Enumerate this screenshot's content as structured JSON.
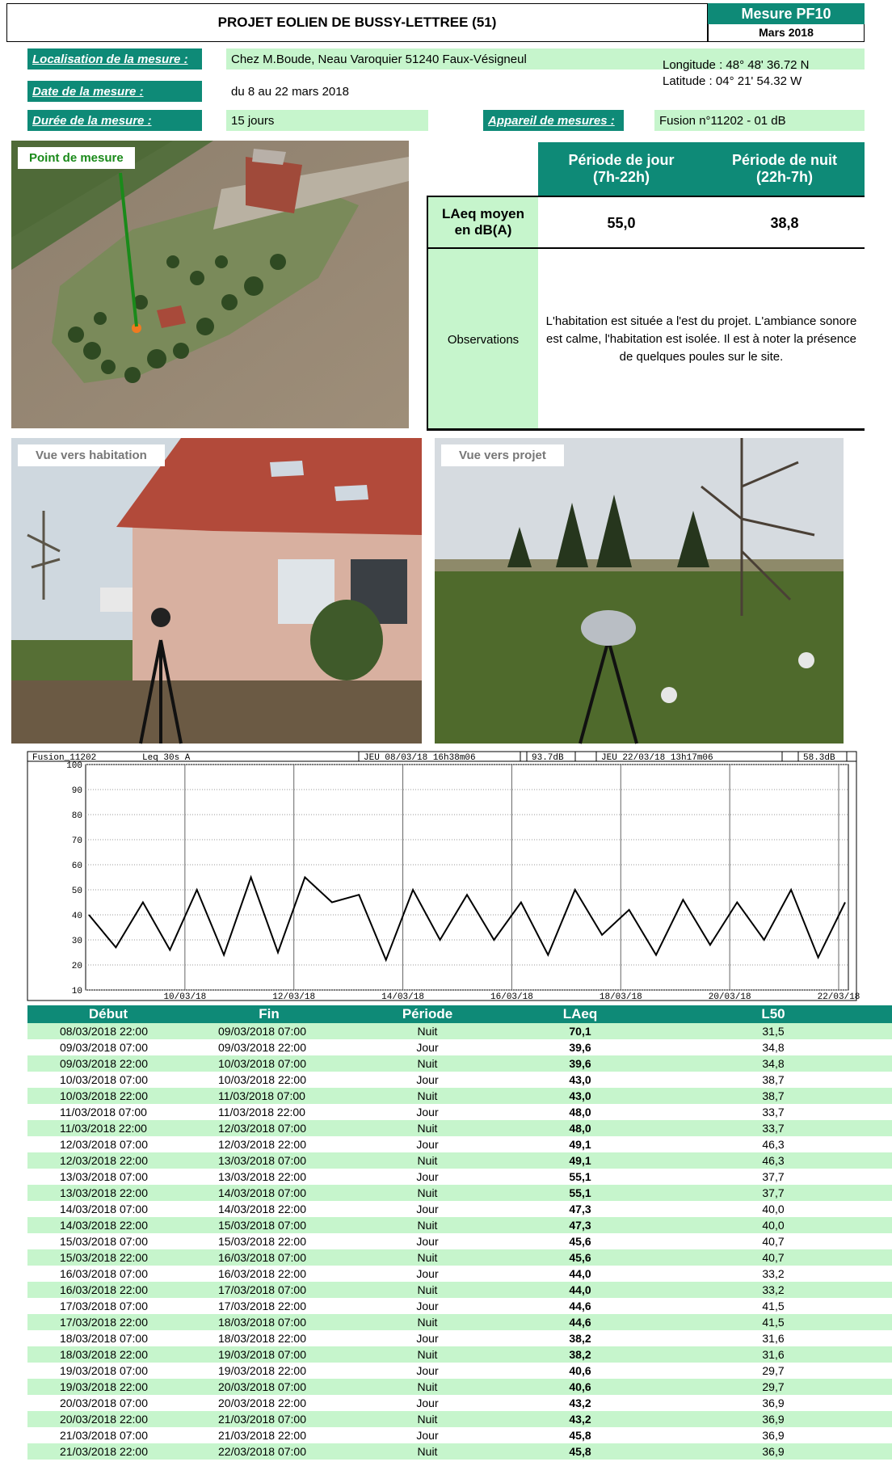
{
  "header": {
    "title": "PROJET EOLIEN DE BUSSY-LETTREE (51)",
    "badge_title": "Mesure PF10",
    "badge_date": "Mars 2018"
  },
  "info": {
    "localisation_label": "Localisation de la mesure :",
    "localisation_value": "Chez M.Boude, Neau Varoquier 51240 Faux-Vésigneul",
    "longitude": "Longitude : 48° 48' 36.72 N",
    "latitude": "Latitude : 04° 21' 54.32 W",
    "date_label": "Date de la mesure :",
    "date_value": "du 8 au 22 mars 2018",
    "duree_label": "Durée de la mesure :",
    "duree_value": "15 jours",
    "appareil_label": "Appareil de mesures :",
    "appareil_value": "Fusion n°11202 - 01 dB"
  },
  "map": {
    "label": "Point de mesure"
  },
  "summary": {
    "col_day": "Période de jour\n(7h-22h)",
    "col_night": "Période de nuit\n(22h-7h)",
    "row_label": "LAeq moyen\nen dB(A)",
    "day_value": "55,0",
    "night_value": "38,8",
    "obs_label": "Observations",
    "obs_text": "L'habitation est située a l'est du projet. L'ambiance sonore est calme, l'habitation est isolée. Il est à noter la présence de quelques poules sur le site."
  },
  "photos": {
    "left_label": "Vue vers habitation",
    "right_label": "Vue vers projet"
  },
  "chart_header": {
    "device": "Fusion_11202",
    "metric": "Leq 30s  A",
    "start": "JEU 08/03/18 16h38m06",
    "start_val": "93.7dB",
    "end": "JEU 22/03/18 13h17m06",
    "end_val": "58.3dB"
  },
  "chart_data": {
    "type": "line",
    "xlabel": "",
    "ylabel": "",
    "ylim": [
      10,
      100
    ],
    "yticks": [
      "100",
      "90",
      "80",
      "70",
      "60",
      "50",
      "40",
      "30",
      "20",
      "10"
    ],
    "xticks": [
      "10/03/18",
      "12/03/18",
      "14/03/18",
      "16/03/18",
      "18/03/18",
      "20/03/18",
      "22/03/18"
    ],
    "grid": true,
    "series": [
      {
        "x": [
          "08/03 16h",
          "09/03 00h",
          "09/03 12h",
          "10/03 00h",
          "10/03 12h",
          "11/03 00h",
          "11/03 12h",
          "12/03 00h",
          "12/03 12h",
          "13/03 00h",
          "13/03 12h",
          "14/03 00h",
          "14/03 12h",
          "15/03 00h",
          "15/03 12h",
          "16/03 00h",
          "16/03 12h",
          "17/03 00h",
          "17/03 12h",
          "18/03 00h",
          "18/03 12h",
          "19/03 00h",
          "19/03 12h",
          "20/03 00h",
          "20/03 12h",
          "21/03 00h",
          "21/03 12h",
          "22/03 00h",
          "22/03 13h"
        ],
        "values": [
          40,
          27,
          45,
          26,
          50,
          24,
          55,
          25,
          55,
          45,
          48,
          22,
          50,
          30,
          48,
          30,
          45,
          24,
          50,
          32,
          42,
          24,
          46,
          28,
          45,
          30,
          50,
          23,
          45
        ]
      }
    ]
  },
  "table": {
    "headers": [
      "Début",
      "Fin",
      "Période",
      "LAeq",
      "L50"
    ],
    "rows": [
      [
        "08/03/2018 22:00",
        "09/03/2018 07:00",
        "Nuit",
        "70,1",
        "31,5"
      ],
      [
        "09/03/2018 07:00",
        "09/03/2018 22:00",
        "Jour",
        "39,6",
        "34,8"
      ],
      [
        "09/03/2018 22:00",
        "10/03/2018 07:00",
        "Nuit",
        "39,6",
        "34,8"
      ],
      [
        "10/03/2018 07:00",
        "10/03/2018 22:00",
        "Jour",
        "43,0",
        "38,7"
      ],
      [
        "10/03/2018 22:00",
        "11/03/2018 07:00",
        "Nuit",
        "43,0",
        "38,7"
      ],
      [
        "11/03/2018 07:00",
        "11/03/2018 22:00",
        "Jour",
        "48,0",
        "33,7"
      ],
      [
        "11/03/2018 22:00",
        "12/03/2018 07:00",
        "Nuit",
        "48,0",
        "33,7"
      ],
      [
        "12/03/2018 07:00",
        "12/03/2018 22:00",
        "Jour",
        "49,1",
        "46,3"
      ],
      [
        "12/03/2018 22:00",
        "13/03/2018 07:00",
        "Nuit",
        "49,1",
        "46,3"
      ],
      [
        "13/03/2018 07:00",
        "13/03/2018 22:00",
        "Jour",
        "55,1",
        "37,7"
      ],
      [
        "13/03/2018 22:00",
        "14/03/2018 07:00",
        "Nuit",
        "55,1",
        "37,7"
      ],
      [
        "14/03/2018 07:00",
        "14/03/2018 22:00",
        "Jour",
        "47,3",
        "40,0"
      ],
      [
        "14/03/2018 22:00",
        "15/03/2018 07:00",
        "Nuit",
        "47,3",
        "40,0"
      ],
      [
        "15/03/2018 07:00",
        "15/03/2018 22:00",
        "Jour",
        "45,6",
        "40,7"
      ],
      [
        "15/03/2018 22:00",
        "16/03/2018 07:00",
        "Nuit",
        "45,6",
        "40,7"
      ],
      [
        "16/03/2018 07:00",
        "16/03/2018 22:00",
        "Jour",
        "44,0",
        "33,2"
      ],
      [
        "16/03/2018 22:00",
        "17/03/2018 07:00",
        "Nuit",
        "44,0",
        "33,2"
      ],
      [
        "17/03/2018 07:00",
        "17/03/2018 22:00",
        "Jour",
        "44,6",
        "41,5"
      ],
      [
        "17/03/2018 22:00",
        "18/03/2018 07:00",
        "Nuit",
        "44,6",
        "41,5"
      ],
      [
        "18/03/2018 07:00",
        "18/03/2018 22:00",
        "Jour",
        "38,2",
        "31,6"
      ],
      [
        "18/03/2018 22:00",
        "19/03/2018 07:00",
        "Nuit",
        "38,2",
        "31,6"
      ],
      [
        "19/03/2018 07:00",
        "19/03/2018 22:00",
        "Jour",
        "40,6",
        "29,7"
      ],
      [
        "19/03/2018 22:00",
        "20/03/2018 07:00",
        "Nuit",
        "40,6",
        "29,7"
      ],
      [
        "20/03/2018 07:00",
        "20/03/2018 22:00",
        "Jour",
        "43,2",
        "36,9"
      ],
      [
        "20/03/2018 22:00",
        "21/03/2018 07:00",
        "Nuit",
        "43,2",
        "36,9"
      ],
      [
        "21/03/2018 07:00",
        "21/03/2018 22:00",
        "Jour",
        "45,8",
        "36,9"
      ],
      [
        "21/03/2018 22:00",
        "22/03/2018 07:00",
        "Nuit",
        "45,8",
        "36,9"
      ]
    ]
  }
}
